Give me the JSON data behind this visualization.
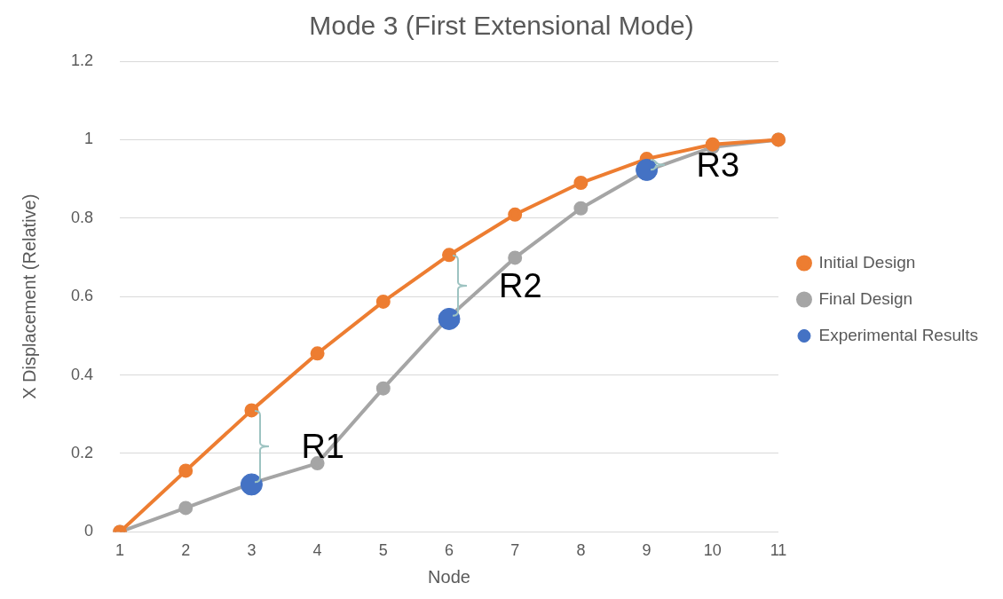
{
  "chart_data": {
    "type": "line",
    "title": "Mode 3 (First Extensional Mode)",
    "xlabel": "Node",
    "ylabel": "X Displacement (Relative)",
    "categories": [
      "1",
      "2",
      "3",
      "4",
      "5",
      "6",
      "7",
      "8",
      "9",
      "10",
      "11"
    ],
    "series": [
      {
        "name": "Initial Design",
        "color": "#ed7d31",
        "values": [
          0,
          0.156,
          0.31,
          0.455,
          0.587,
          0.706,
          0.809,
          0.89,
          0.951,
          0.988,
          1
        ]
      },
      {
        "name": "Final Design",
        "color": "#a5a5a5",
        "values": [
          0,
          0.061,
          0.124,
          0.175,
          0.366,
          0.548,
          0.699,
          0.825,
          0.921,
          0.981,
          1
        ]
      },
      {
        "name": "Experimental Results",
        "color": "#4472c4",
        "type": "scatter",
        "values": [
          null,
          null,
          0.121,
          null,
          null,
          0.543,
          null,
          null,
          0.923,
          null,
          null
        ]
      }
    ],
    "annotations": [
      "R1",
      "R2",
      "R3"
    ],
    "ylim": [
      0,
      1.2
    ],
    "yticks": [
      0,
      0.2,
      0.4,
      0.6,
      0.8,
      1,
      1.2
    ],
    "grid": "y",
    "legend": "right",
    "marker": "circle"
  }
}
